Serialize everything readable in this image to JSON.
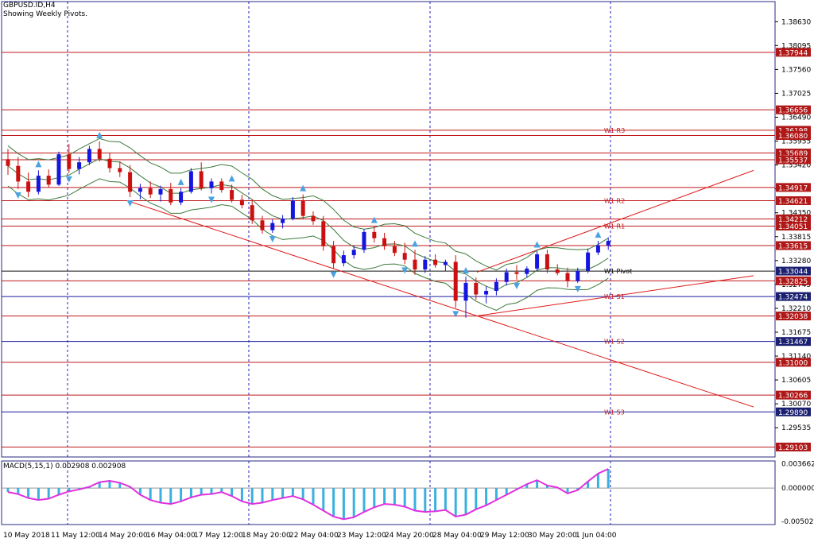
{
  "header": {
    "symbol_line": "GBPUSD.ID,H4",
    "subtitle": "Showing Weekly Pivots."
  },
  "colors": {
    "frame": "#2a2a80",
    "resistance_line": "#c0181b",
    "support_line": "#1a1aa0",
    "pivot_line": "#101010",
    "trend_line": "#e01b1b",
    "bollinger": "#3c7a3c",
    "bull_candle": "#1515e0",
    "bear_candle": "#cc1010",
    "arrow": "#4aa3e0",
    "macd_bar": "#3ab0e0",
    "macd_signal": "#e030e0",
    "label_red_bg": "#b01818",
    "label_navy_bg": "#1a1f70",
    "label_text": "#ffffff"
  },
  "chart_data": {
    "type": "candlestick",
    "title": "GBPUSD.ID,H4",
    "subtitle": "Showing Weekly Pivots.",
    "ylim": [
      1.2888,
      1.3908
    ],
    "y_ticks": [
      "1.38630",
      "1.38095",
      "1.37560",
      "1.37025",
      "1.36490",
      "1.35955",
      "1.35420",
      "1.34885",
      "1.34350",
      "1.33815",
      "1.33280",
      "1.32745",
      "1.32210",
      "1.31675",
      "1.31140",
      "1.30605",
      "1.30070",
      "1.29535"
    ],
    "x_labels": [
      "10 May 2018",
      "11 May 12:00",
      "14 May 20:00",
      "16 May 04:00",
      "17 May 12:00",
      "18 May 20:00",
      "22 May 04:00",
      "23 May 12:00",
      "24 May 20:00",
      "28 May 04:00",
      "29 May 12:00",
      "30 May 20:00",
      "1 Jun 04:00"
    ],
    "pivot_levels": [
      {
        "label": "W1 R3",
        "value": 1.36198
      },
      {
        "label": "W1 R2",
        "value": 1.34621
      },
      {
        "label": "W1 R1",
        "value": 1.34051
      },
      {
        "label": "W1 Pivot",
        "value": 1.33044
      },
      {
        "label": "W1 S1",
        "value": 1.32474
      },
      {
        "label": "W1 S2",
        "value": 1.31467
      },
      {
        "label": "W1 S3",
        "value": 1.2989
      }
    ],
    "horizontal_levels": [
      {
        "value": 1.37944,
        "label": "1.37944",
        "kind": "red"
      },
      {
        "value": 1.36656,
        "label": "1.36656",
        "kind": "red"
      },
      {
        "value": 1.36198,
        "label": "1.36198",
        "kind": "red"
      },
      {
        "value": 1.3608,
        "label": "1.36080",
        "kind": "red"
      },
      {
        "value": 1.35689,
        "label": "1.35689",
        "kind": "red"
      },
      {
        "value": 1.35537,
        "label": "1.35537",
        "kind": "red"
      },
      {
        "value": 1.34917,
        "label": "1.34917",
        "kind": "red"
      },
      {
        "value": 1.34621,
        "label": "1.34621",
        "kind": "red"
      },
      {
        "value": 1.34212,
        "label": "1.34212",
        "kind": "red"
      },
      {
        "value": 1.34051,
        "label": "1.34051",
        "kind": "red"
      },
      {
        "value": 1.33615,
        "label": "1.33615",
        "kind": "red"
      },
      {
        "value": 1.33044,
        "label": "1.33044",
        "kind": "pivot"
      },
      {
        "value": 1.32825,
        "label": "1.32825",
        "kind": "red"
      },
      {
        "value": 1.32474,
        "label": "1.32474",
        "kind": "blue"
      },
      {
        "value": 1.32038,
        "label": "1.32038",
        "kind": "red"
      },
      {
        "value": 1.31467,
        "label": "1.31467",
        "kind": "blue"
      },
      {
        "value": 1.31,
        "label": "1.31000",
        "kind": "red"
      },
      {
        "value": 1.30266,
        "label": "1.30266",
        "kind": "red"
      },
      {
        "value": 1.2989,
        "label": "1.29890",
        "kind": "blue"
      },
      {
        "value": 1.29103,
        "label": "1.29103",
        "kind": "red"
      }
    ],
    "candles": [
      [
        1.3555,
        1.3578,
        1.352,
        1.354
      ],
      [
        1.354,
        1.356,
        1.3488,
        1.3505
      ],
      [
        1.3505,
        1.3525,
        1.347,
        1.3482
      ],
      [
        1.3482,
        1.353,
        1.3476,
        1.3518
      ],
      [
        1.3518,
        1.3532,
        1.3492,
        1.3498
      ],
      [
        1.3498,
        1.3572,
        1.3495,
        1.3566
      ],
      [
        1.3566,
        1.3589,
        1.3524,
        1.3533
      ],
      [
        1.3533,
        1.356,
        1.3521,
        1.3548
      ],
      [
        1.3548,
        1.3585,
        1.3542,
        1.3578
      ],
      [
        1.3578,
        1.3595,
        1.355,
        1.3556
      ],
      [
        1.3556,
        1.357,
        1.3525,
        1.3535
      ],
      [
        1.3535,
        1.355,
        1.3515,
        1.3526
      ],
      [
        1.3526,
        1.3542,
        1.347,
        1.3482
      ],
      [
        1.3482,
        1.35,
        1.3465,
        1.349
      ],
      [
        1.349,
        1.3505,
        1.3468,
        1.3476
      ],
      [
        1.3476,
        1.3496,
        1.346,
        1.3488
      ],
      [
        1.3488,
        1.3502,
        1.3452,
        1.3458
      ],
      [
        1.3458,
        1.349,
        1.3452,
        1.3482
      ],
      [
        1.3482,
        1.3535,
        1.3478,
        1.3528
      ],
      [
        1.3528,
        1.3548,
        1.3485,
        1.349
      ],
      [
        1.349,
        1.3512,
        1.3478,
        1.3505
      ],
      [
        1.3505,
        1.3512,
        1.348,
        1.3486
      ],
      [
        1.3486,
        1.3498,
        1.3458,
        1.3464
      ],
      [
        1.3464,
        1.3475,
        1.3445,
        1.3452
      ],
      [
        1.3452,
        1.3465,
        1.341,
        1.3418
      ],
      [
        1.3418,
        1.3428,
        1.3388,
        1.3396
      ],
      [
        1.3396,
        1.342,
        1.339,
        1.3412
      ],
      [
        1.3412,
        1.343,
        1.34,
        1.3422
      ],
      [
        1.3422,
        1.347,
        1.3418,
        1.3462
      ],
      [
        1.3462,
        1.3476,
        1.342,
        1.3428
      ],
      [
        1.3428,
        1.3438,
        1.3408,
        1.3416
      ],
      [
        1.3416,
        1.3428,
        1.335,
        1.336
      ],
      [
        1.336,
        1.3372,
        1.331,
        1.3322
      ],
      [
        1.3322,
        1.335,
        1.3315,
        1.334
      ],
      [
        1.334,
        1.3362,
        1.3332,
        1.3352
      ],
      [
        1.3352,
        1.3398,
        1.3345,
        1.3392
      ],
      [
        1.3392,
        1.3405,
        1.3368,
        1.3378
      ],
      [
        1.3378,
        1.339,
        1.3352,
        1.336
      ],
      [
        1.336,
        1.3372,
        1.3338,
        1.3345
      ],
      [
        1.3345,
        1.3368,
        1.332,
        1.333
      ],
      [
        1.333,
        1.3352,
        1.3296,
        1.3308
      ],
      [
        1.3308,
        1.3338,
        1.33,
        1.333
      ],
      [
        1.333,
        1.3342,
        1.3312,
        1.3318
      ],
      [
        1.3318,
        1.333,
        1.3305,
        1.3325
      ],
      [
        1.3325,
        1.334,
        1.3222,
        1.3238
      ],
      [
        1.3238,
        1.3292,
        1.32,
        1.3278
      ],
      [
        1.3278,
        1.329,
        1.324,
        1.3252
      ],
      [
        1.3252,
        1.327,
        1.3232,
        1.326
      ],
      [
        1.326,
        1.3288,
        1.325,
        1.328
      ],
      [
        1.328,
        1.331,
        1.3272,
        1.3302
      ],
      [
        1.3302,
        1.3318,
        1.3285,
        1.3298
      ],
      [
        1.3298,
        1.3315,
        1.329,
        1.331
      ],
      [
        1.331,
        1.335,
        1.3305,
        1.3342
      ],
      [
        1.3342,
        1.3352,
        1.33,
        1.3308
      ],
      [
        1.3308,
        1.332,
        1.3295,
        1.33
      ],
      [
        1.33,
        1.3312,
        1.3268,
        1.3282
      ],
      [
        1.3282,
        1.3312,
        1.3278,
        1.3305
      ],
      [
        1.3305,
        1.3355,
        1.33,
        1.3346
      ],
      [
        1.3346,
        1.3372,
        1.334,
        1.3362
      ],
      [
        1.3362,
        1.338,
        1.3352,
        1.3372
      ]
    ],
    "bollinger_note": "upper, middle and lower Bollinger band lines drawn around price",
    "macd": {
      "label": "MACD(5,15,1) 0.002908 0.002908",
      "y_ticks": [
        "0.003662",
        "0.000000",
        "-0.005029"
      ],
      "ylim": [
        -0.0055,
        0.0041
      ],
      "values": [
        -0.0006,
        -0.0009,
        -0.0015,
        -0.0018,
        -0.0016,
        -0.001,
        -0.0005,
        -0.0002,
        0.0002,
        0.0009,
        0.0011,
        0.0008,
        0.0002,
        -0.001,
        -0.0018,
        -0.0022,
        -0.0024,
        -0.002,
        -0.0014,
        -0.001,
        -0.0009,
        -0.0006,
        -0.0012,
        -0.002,
        -0.0024,
        -0.0022,
        -0.0018,
        -0.0015,
        -0.0012,
        -0.0017,
        -0.0025,
        -0.0034,
        -0.0043,
        -0.0047,
        -0.0044,
        -0.0036,
        -0.0029,
        -0.0024,
        -0.0025,
        -0.0028,
        -0.0034,
        -0.0036,
        -0.0035,
        -0.0033,
        -0.0043,
        -0.004,
        -0.0032,
        -0.0026,
        -0.0018,
        -0.001,
        -0.0002,
        0.0006,
        0.0012,
        0.0004,
        0.0001,
        -0.0008,
        -0.0003,
        0.001,
        0.0022,
        0.0029
      ]
    }
  }
}
